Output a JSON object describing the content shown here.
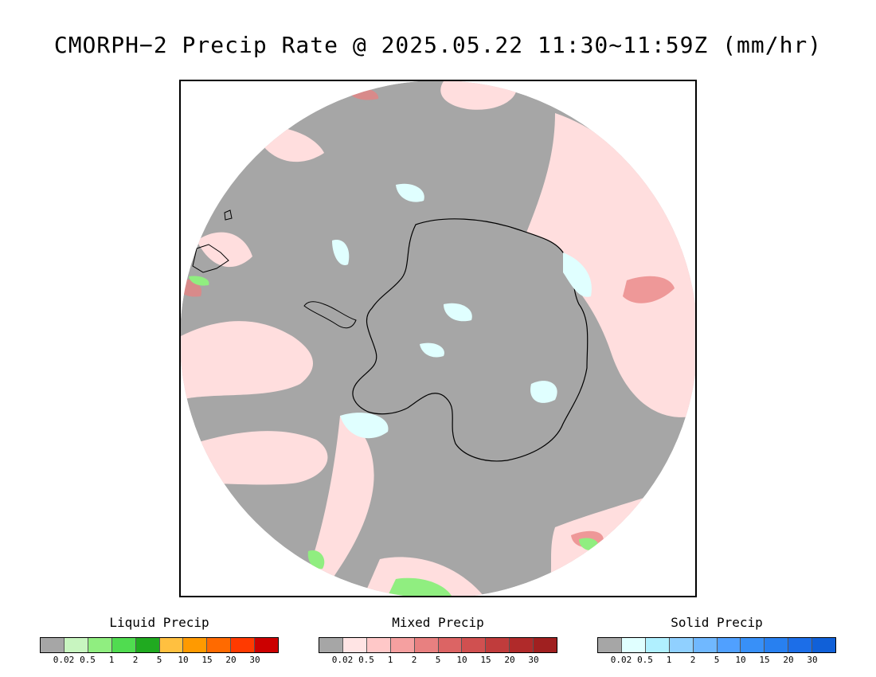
{
  "title": "CMORPH−2 Precip Rate @ 2025.05.22 11:30~11:59Z (mm/hr)",
  "map": {
    "projection": "south polar stereographic",
    "background_color": "#a6a6a6",
    "land_outline_color": "#000000"
  },
  "legends": [
    {
      "title": "Liquid Precip",
      "colors": [
        "#a6a6a6",
        "#c8f5c0",
        "#90ee80",
        "#50dc50",
        "#20aa20",
        "#ffc040",
        "#ff9a00",
        "#ff6a00",
        "#ff3a00",
        "#cc0000"
      ],
      "ticks": [
        "0.02",
        "0.5",
        "1",
        "2",
        "5",
        "10",
        "15",
        "20",
        "30"
      ]
    },
    {
      "title": "Mixed Precip",
      "colors": [
        "#a6a6a6",
        "#ffe4e4",
        "#ffc8c8",
        "#f5a0a0",
        "#e88080",
        "#dc6464",
        "#d05050",
        "#c03c3c",
        "#b02a2a",
        "#a02020"
      ],
      "ticks": [
        "0.02",
        "0.5",
        "1",
        "2",
        "5",
        "10",
        "15",
        "20",
        "30"
      ]
    },
    {
      "title": "Solid Precip",
      "colors": [
        "#a6a6a6",
        "#e0ffff",
        "#b0f0ff",
        "#90d0ff",
        "#70b8ff",
        "#50a0ff",
        "#3890f8",
        "#2880f0",
        "#1c6ee8",
        "#1060d8"
      ],
      "ticks": [
        "0.02",
        "0.5",
        "1",
        "2",
        "5",
        "10",
        "15",
        "20",
        "30"
      ]
    }
  ]
}
